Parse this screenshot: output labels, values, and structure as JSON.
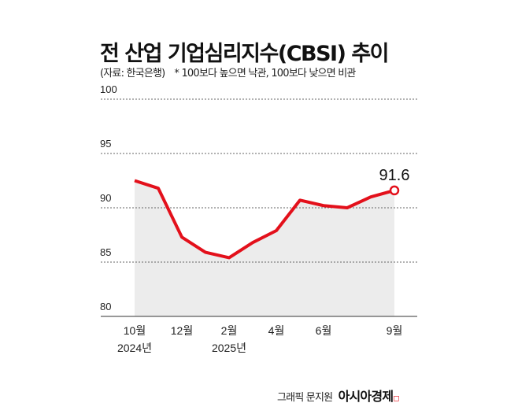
{
  "header": {
    "title": "전 산업 기업심리지수(CBSI) 추이",
    "source": "(자료: 한국은행)",
    "note": "* 100보다 높으면 낙관, 100보다 낮으면 비관"
  },
  "credit": {
    "graphic": "그래픽 문지원",
    "brand": "아시아경제"
  },
  "colors": {
    "line": "#e3101b",
    "area": "#ececec"
  },
  "chart_data": {
    "type": "line",
    "title": "전 산업 기업심리지수(CBSI) 추이",
    "x": [
      "2024-10",
      "2024-11",
      "2024-12",
      "2025-01",
      "2025-02",
      "2025-03",
      "2025-04",
      "2025-05",
      "2025-06",
      "2025-07",
      "2025-08",
      "2025-09"
    ],
    "values": [
      92.5,
      91.8,
      87.3,
      85.9,
      85.4,
      86.8,
      87.9,
      90.7,
      90.2,
      90.0,
      91.0,
      91.6
    ],
    "ylim": [
      80,
      100
    ],
    "yticks": [
      "80",
      "85",
      "90",
      "95",
      "100"
    ],
    "xtick_labels": [
      {
        "i": 0,
        "label": "10월",
        "sub": "2024년"
      },
      {
        "i": 2,
        "label": "12월"
      },
      {
        "i": 4,
        "label": "2월",
        "sub": "2025년"
      },
      {
        "i": 6,
        "label": "4월"
      },
      {
        "i": 8,
        "label": "6월"
      },
      {
        "i": 11,
        "label": "9월"
      }
    ],
    "annotation": {
      "i": 11,
      "label": "91.6"
    },
    "grid": true
  }
}
